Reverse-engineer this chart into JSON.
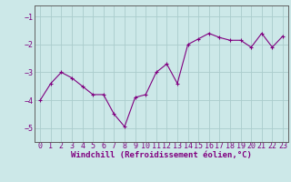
{
  "x": [
    0,
    1,
    2,
    3,
    4,
    5,
    6,
    7,
    8,
    9,
    10,
    11,
    12,
    13,
    14,
    15,
    16,
    17,
    18,
    19,
    20,
    21,
    22,
    23
  ],
  "y": [
    -4.0,
    -3.4,
    -3.0,
    -3.2,
    -3.5,
    -3.8,
    -3.8,
    -4.5,
    -4.95,
    -3.9,
    -3.8,
    -3.0,
    -2.7,
    -3.4,
    -2.0,
    -1.8,
    -1.6,
    -1.75,
    -1.85,
    -1.85,
    -2.1,
    -1.6,
    -2.1,
    -1.7
  ],
  "line_color": "#800080",
  "marker": "+",
  "marker_color": "#800080",
  "bg_color": "#cce8e8",
  "grid_color": "#aacccc",
  "xlabel": "Windchill (Refroidissement éolien,°C)",
  "ylim": [
    -5.5,
    -0.6
  ],
  "xlim": [
    -0.5,
    23.5
  ],
  "yticks": [
    -5,
    -4,
    -3,
    -2,
    -1
  ],
  "xticks": [
    0,
    1,
    2,
    3,
    4,
    5,
    6,
    7,
    8,
    9,
    10,
    11,
    12,
    13,
    14,
    15,
    16,
    17,
    18,
    19,
    20,
    21,
    22,
    23
  ],
  "tick_color": "#800080",
  "xlabel_color": "#800080",
  "xlabel_fontsize": 6.5,
  "tick_fontsize": 6.0,
  "line_width": 0.8,
  "marker_size": 3
}
